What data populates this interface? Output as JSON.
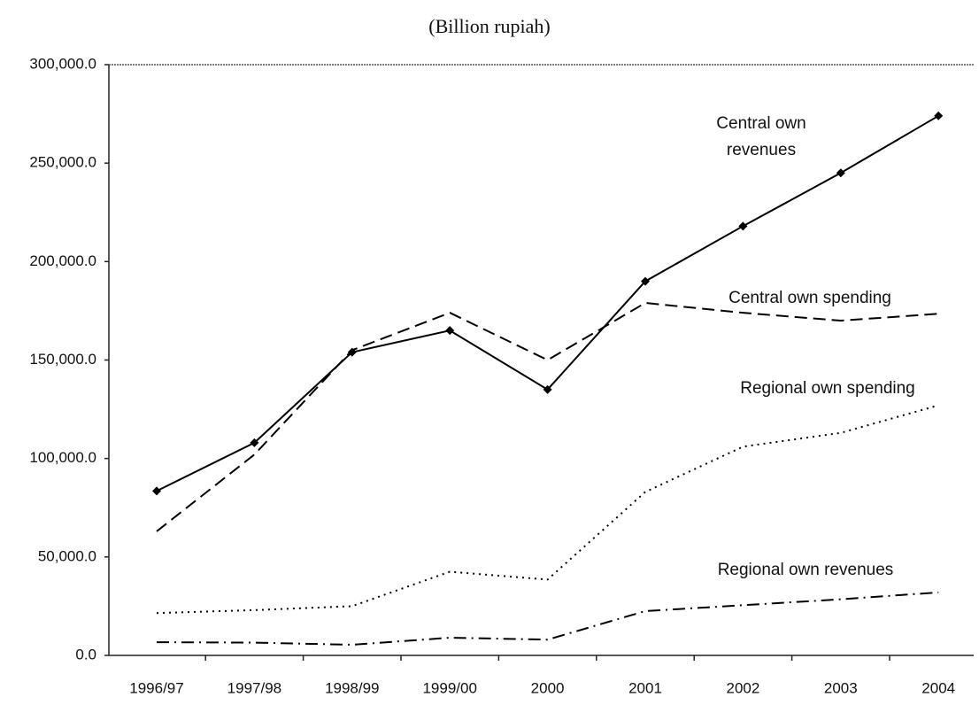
{
  "chart_data": {
    "type": "line",
    "title": "(Billion rupiah)",
    "categories": [
      "1996/97",
      "1997/98",
      "1998/99",
      "1999/00",
      "2000",
      "2001",
      "2002",
      "2003",
      "2004"
    ],
    "series": [
      {
        "name": "Central own revenues",
        "color": "#000000",
        "linestyle": "solid",
        "marker": "diamond",
        "values": [
          83500,
          108000,
          154000,
          165000,
          135000,
          190000,
          218000,
          245000,
          274000
        ]
      },
      {
        "name": "Central own spending",
        "color": "#000000",
        "linestyle": "dashed",
        "values": [
          63000,
          102000,
          155000,
          174000,
          150000,
          179000,
          174000,
          170000,
          173500
        ]
      },
      {
        "name": "Regional own spending",
        "color": "#000000",
        "linestyle": "dotted",
        "values": [
          21500,
          23000,
          25000,
          42500,
          38500,
          83000,
          106000,
          113000,
          127000
        ]
      },
      {
        "name": "Regional own revenues",
        "color": "#000000",
        "linestyle": "dashdot",
        "values": [
          6700,
          6500,
          5400,
          9000,
          8000,
          22500,
          25500,
          28500,
          32000
        ]
      }
    ],
    "ylim": [
      0,
      300000
    ],
    "yticks": [
      {
        "value": 0,
        "label": "0.0"
      },
      {
        "value": 50000,
        "label": "50,000.0"
      },
      {
        "value": 100000,
        "label": "100,000.0"
      },
      {
        "value": 150000,
        "label": "150,000.0"
      },
      {
        "value": 200000,
        "label": "200,000.0"
      },
      {
        "value": 250000,
        "label": "250,000.0"
      },
      {
        "value": 300000,
        "label": "300,000.0"
      }
    ],
    "grid": false
  }
}
